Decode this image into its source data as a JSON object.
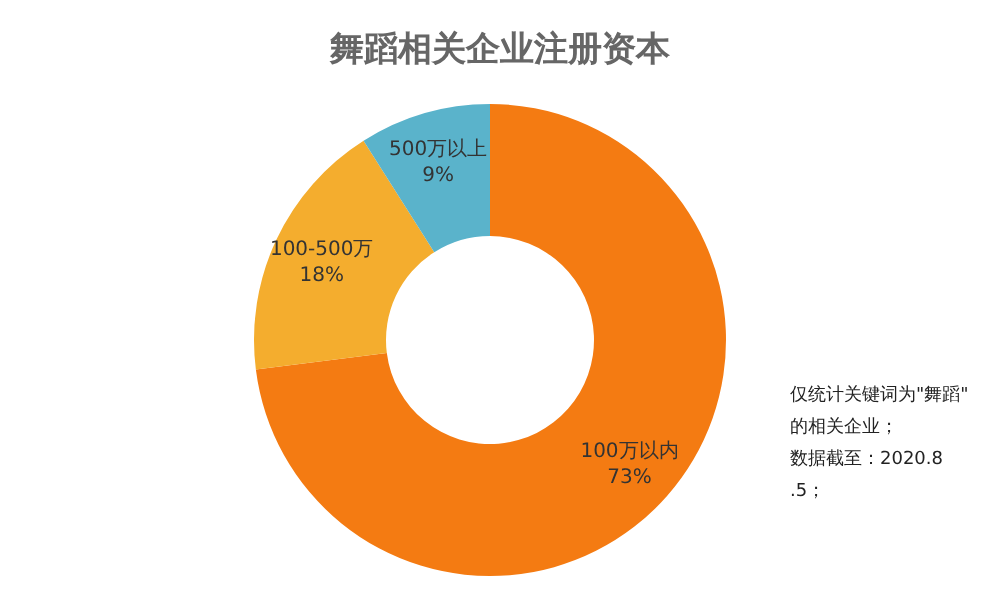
{
  "chart_data": {
    "type": "donut",
    "title": "舞蹈相关企业注册资本",
    "categories": [
      "100万以内",
      "100-500万",
      "500万以上"
    ],
    "values": [
      73,
      18,
      9
    ],
    "value_labels": [
      "73%",
      "18%",
      "9%"
    ],
    "colors": [
      "#f47b12",
      "#f4ad2e",
      "#5ab3cb"
    ],
    "annotations": [
      "仅统计关键词为\"舞蹈\"的相关企业；",
      "数据截至：2020.8.5；"
    ]
  }
}
